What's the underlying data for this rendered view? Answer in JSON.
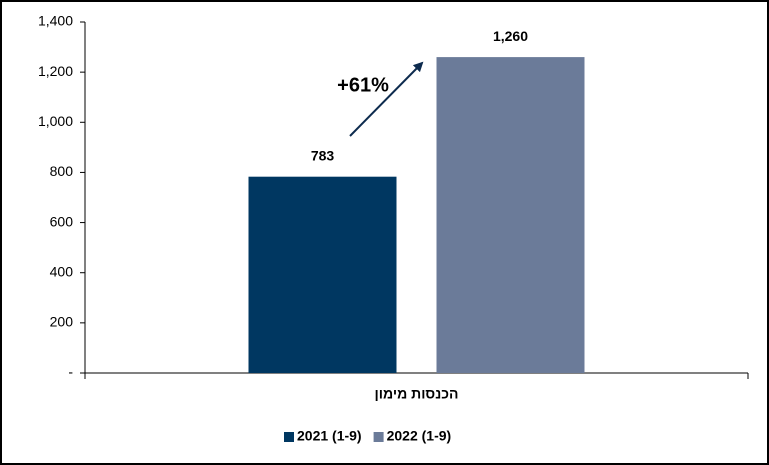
{
  "chart_data": {
    "type": "bar",
    "categories": [
      "הכנסות מימון"
    ],
    "series": [
      {
        "name": "2021 (1-9)",
        "color": "#003761",
        "values": [
          783
        ]
      },
      {
        "name": "2022 (1-9)",
        "color": "#6b7b99",
        "values": [
          1260
        ],
        "value_labels": [
          "1,260"
        ]
      }
    ],
    "annotation": "+61%",
    "ylim": [
      0,
      1400
    ],
    "yticks": [
      {
        "value": 0,
        "label": "-"
      },
      200,
      400,
      600,
      800,
      {
        "value": 1000,
        "label": "1,000"
      },
      {
        "value": 1200,
        "label": "1,200"
      },
      {
        "value": 1400,
        "label": "1,400"
      }
    ],
    "legend": "bottom"
  }
}
